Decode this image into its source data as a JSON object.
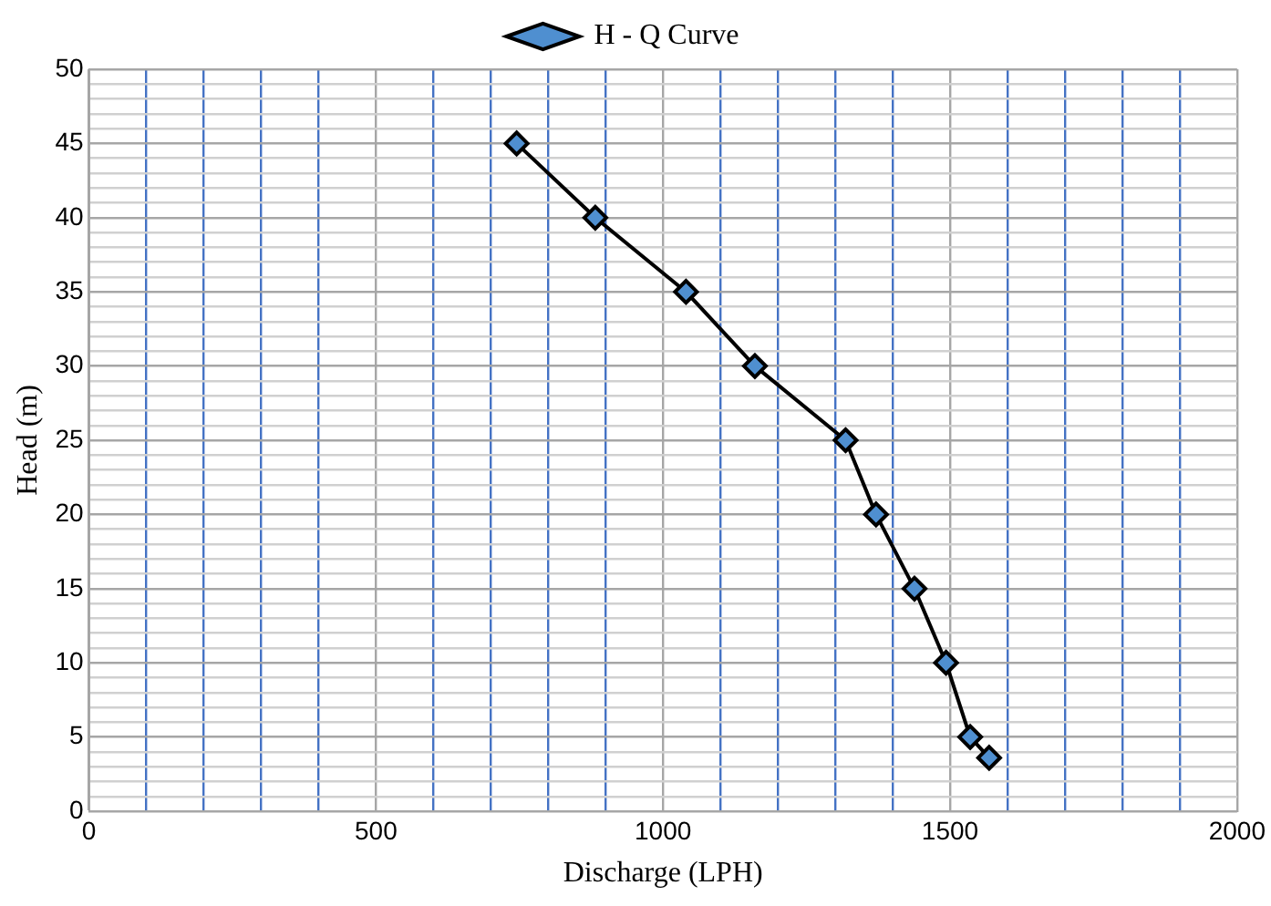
{
  "chart_data": {
    "type": "line",
    "xlabel": "Discharge (LPH)",
    "ylabel": "Head (m)",
    "series": [
      {
        "name": "H - Q Curve",
        "color": "#000000",
        "x": [
          745,
          882,
          1040,
          1160,
          1318,
          1371,
          1438,
          1493,
          1535,
          1568
        ],
        "values": [
          45,
          40,
          35,
          30,
          25,
          20,
          15,
          10,
          5,
          3.6
        ]
      }
    ],
    "xlim": [
      0,
      2000
    ],
    "xticks": [
      0,
      {
        "value": 100,
        "label": null
      },
      {
        "value": 200,
        "label": null
      },
      {
        "value": 300,
        "label": null
      },
      {
        "value": 400,
        "label": null
      },
      500,
      {
        "value": 600,
        "label": null
      },
      {
        "value": 700,
        "label": null
      },
      {
        "value": 800,
        "label": null
      },
      {
        "value": 900,
        "label": null
      },
      1000,
      {
        "value": 1100,
        "label": null
      },
      {
        "value": 1200,
        "label": null
      },
      {
        "value": 1300,
        "label": null
      },
      {
        "value": 1400,
        "label": null
      },
      1500,
      {
        "value": 1600,
        "label": null
      },
      {
        "value": 1700,
        "label": null
      },
      {
        "value": 1800,
        "label": null
      },
      {
        "value": 1900,
        "label": null
      },
      2000
    ],
    "ylim": [
      0,
      50
    ],
    "yticks": [
      0,
      {
        "value": 1,
        "label": null
      },
      {
        "value": 2,
        "label": null
      },
      {
        "value": 3,
        "label": null
      },
      {
        "value": 4,
        "label": null
      },
      5,
      {
        "value": 6,
        "label": null
      },
      {
        "value": 7,
        "label": null
      },
      {
        "value": 8,
        "label": null
      },
      {
        "value": 9,
        "label": null
      },
      10,
      {
        "value": 11,
        "label": null
      },
      {
        "value": 12,
        "label": null
      },
      {
        "value": 13,
        "label": null
      },
      {
        "value": 14,
        "label": null
      },
      15,
      {
        "value": 16,
        "label": null
      },
      {
        "value": 17,
        "label": null
      },
      {
        "value": 18,
        "label": null
      },
      {
        "value": 19,
        "label": null
      },
      20,
      {
        "value": 21,
        "label": null
      },
      {
        "value": 22,
        "label": null
      },
      {
        "value": 23,
        "label": null
      },
      {
        "value": 24,
        "label": null
      },
      25,
      {
        "value": 26,
        "label": null
      },
      {
        "value": 27,
        "label": null
      },
      {
        "value": 28,
        "label": null
      },
      {
        "value": 29,
        "label": null
      },
      30,
      {
        "value": 31,
        "label": null
      },
      {
        "value": 32,
        "label": null
      },
      {
        "value": 33,
        "label": null
      },
      {
        "value": 34,
        "label": null
      },
      35,
      {
        "value": 36,
        "label": null
      },
      {
        "value": 37,
        "label": null
      },
      {
        "value": 38,
        "label": null
      },
      {
        "value": 39,
        "label": null
      },
      40,
      {
        "value": 41,
        "label": null
      },
      {
        "value": 42,
        "label": null
      },
      {
        "value": 43,
        "label": null
      },
      {
        "value": 44,
        "label": null
      },
      45,
      {
        "value": 46,
        "label": null
      },
      {
        "value": 47,
        "label": null
      },
      {
        "value": 48,
        "label": null
      },
      {
        "value": 49,
        "label": null
      },
      50
    ],
    "grid": true,
    "legend": "top",
    "marker": "diamond",
    "line_style": "solid"
  }
}
